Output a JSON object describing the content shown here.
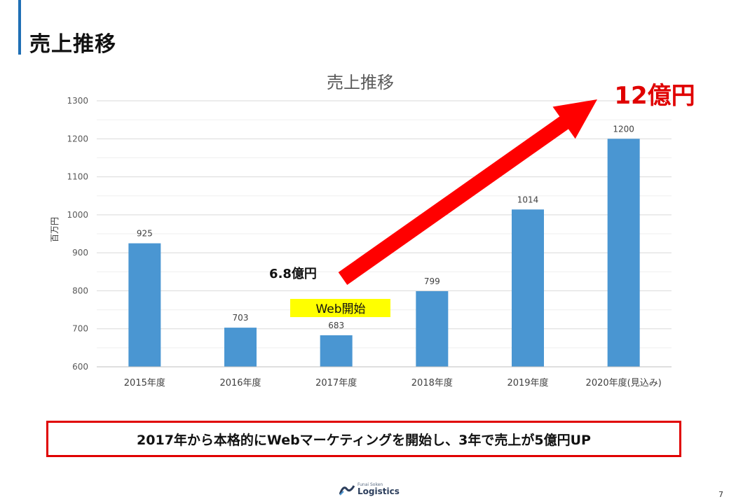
{
  "slide": {
    "title": "売上推移",
    "callout": "2017年から本格的にWebマーケティングを開始し、3年で売上が5億円UP",
    "logo_small": "Funai Soken",
    "logo_big": "Logistics",
    "page_number": "7"
  },
  "chart_data": {
    "type": "bar",
    "title": "売上推移",
    "ylabel": "百万円",
    "xlabel": "",
    "ylim": [
      600,
      1300
    ],
    "yticks": [
      600,
      700,
      800,
      900,
      1000,
      1100,
      1200,
      1300
    ],
    "categories": [
      "2015年度",
      "2016年度",
      "2017年度",
      "2018年度",
      "2019年度",
      "2020年度(見込み)"
    ],
    "values": [
      925,
      703,
      683,
      799,
      1014,
      1200
    ],
    "data_labels": [
      "925",
      "703",
      "683",
      "799",
      "1014",
      "1200"
    ],
    "bar_color": "#4a96d2",
    "grid": true,
    "annotations": {
      "start_value": "6.8億円",
      "end_value": "12億円",
      "web_start": "Web開始",
      "end_value_color": "#e00000",
      "arrow_color": "#ff0000",
      "highlight_color": "#ffff00"
    }
  }
}
